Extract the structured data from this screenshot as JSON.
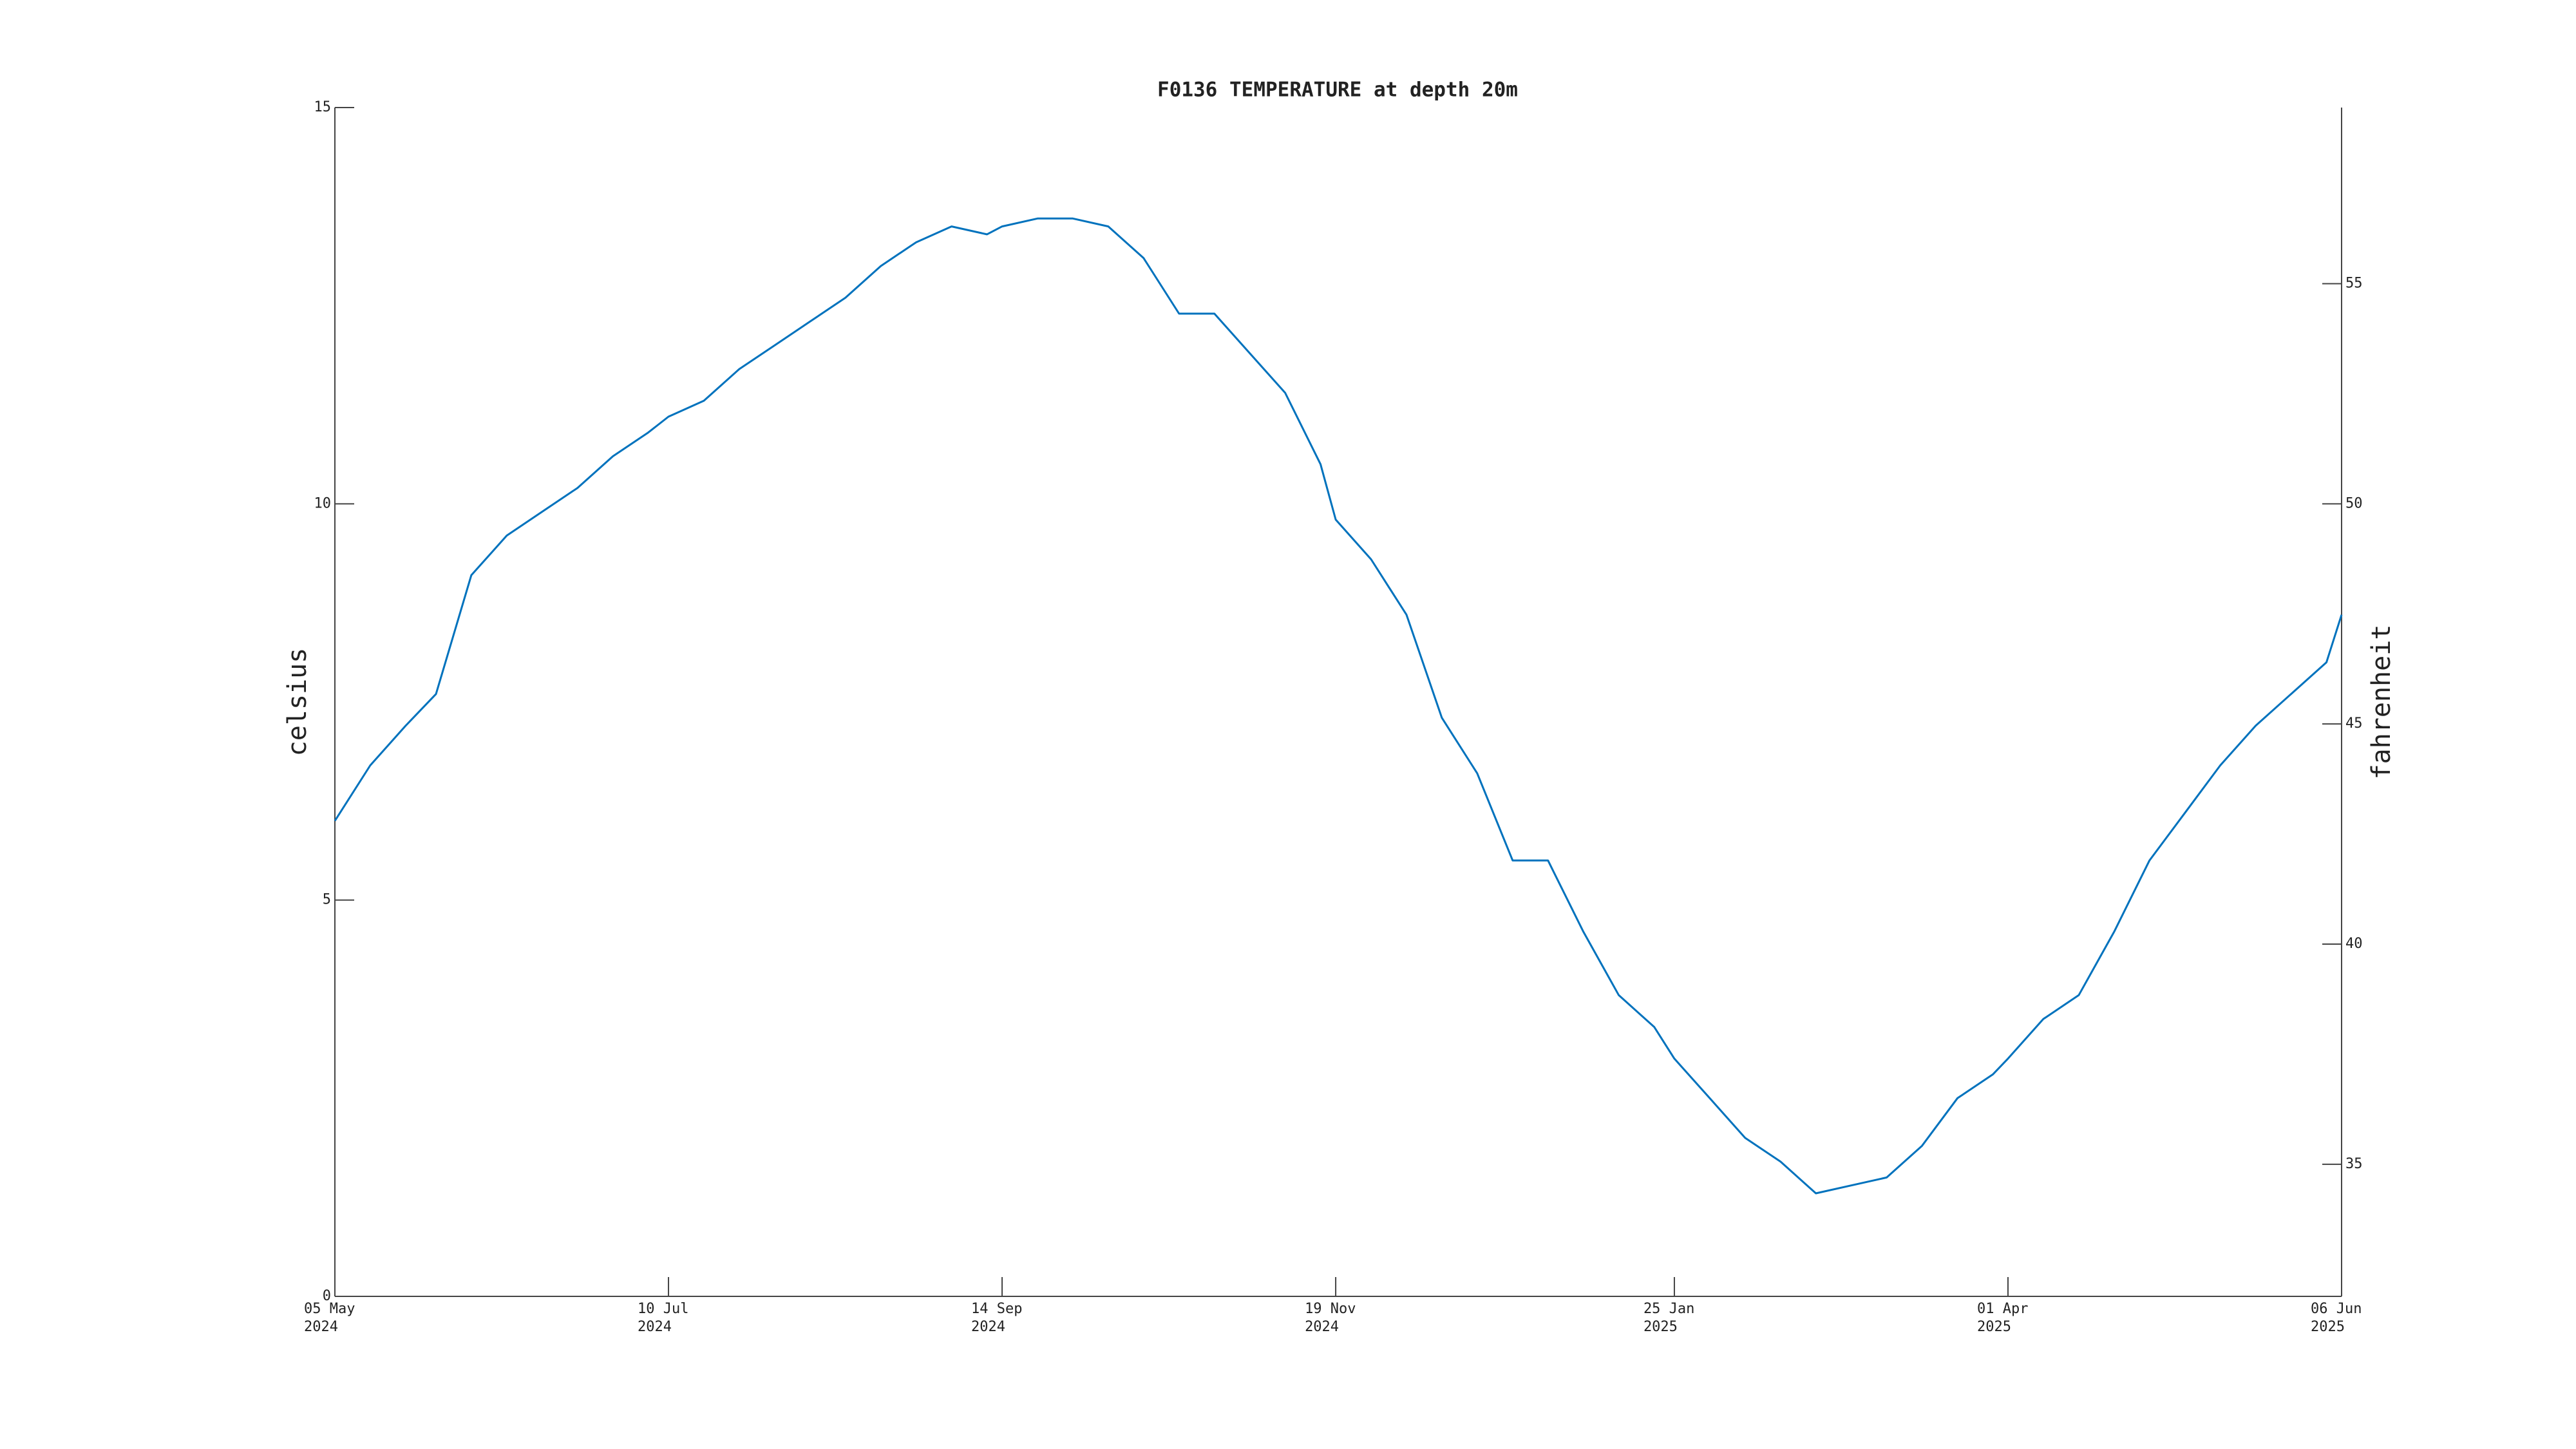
{
  "chart_data": {
    "type": "line",
    "title": "F0136 TEMPERATURE at depth 20m",
    "y_label": "celsius",
    "y2_label": "fahrenheit",
    "x": [
      "2024-05-05",
      "2024-05-12",
      "2024-05-19",
      "2024-05-25",
      "2024-06-01",
      "2024-06-08",
      "2024-06-15",
      "2024-06-22",
      "2024-06-29",
      "2024-07-06",
      "2024-07-10",
      "2024-07-17",
      "2024-07-24",
      "2024-07-31",
      "2024-08-07",
      "2024-08-14",
      "2024-08-21",
      "2024-08-28",
      "2024-09-04",
      "2024-09-11",
      "2024-09-14",
      "2024-09-21",
      "2024-09-28",
      "2024-10-05",
      "2024-10-12",
      "2024-10-19",
      "2024-10-26",
      "2024-11-02",
      "2024-11-09",
      "2024-11-16",
      "2024-11-19",
      "2024-11-26",
      "2024-12-03",
      "2024-12-10",
      "2024-12-17",
      "2024-12-24",
      "2024-12-31",
      "2025-01-07",
      "2025-01-14",
      "2025-01-21",
      "2025-01-25",
      "2025-02-01",
      "2025-02-08",
      "2025-02-15",
      "2025-02-22",
      "2025-03-01",
      "2025-03-08",
      "2025-03-15",
      "2025-03-22",
      "2025-03-29",
      "2025-04-01",
      "2025-04-08",
      "2025-04-15",
      "2025-04-22",
      "2025-04-29",
      "2025-05-06",
      "2025-05-13",
      "2025-05-20",
      "2025-05-27",
      "2025-06-03",
      "2025-06-06"
    ],
    "series": [
      {
        "name": "celsius",
        "color": "#0072bd",
        "values": [
          6.0,
          6.7,
          7.2,
          7.6,
          9.1,
          9.6,
          9.9,
          10.2,
          10.6,
          10.9,
          11.1,
          11.3,
          11.7,
          12.0,
          12.3,
          12.6,
          13.0,
          13.3,
          13.5,
          13.4,
          13.5,
          13.6,
          13.6,
          13.5,
          13.1,
          12.4,
          12.4,
          11.9,
          11.4,
          10.5,
          9.8,
          9.3,
          8.6,
          7.3,
          6.6,
          5.5,
          5.5,
          4.6,
          3.8,
          3.4,
          3.0,
          2.5,
          2.0,
          1.7,
          1.3,
          1.4,
          1.5,
          1.9,
          2.5,
          2.8,
          3.0,
          3.5,
          3.8,
          4.6,
          5.5,
          6.1,
          6.7,
          7.2,
          7.6,
          8.0,
          8.6
        ]
      }
    ],
    "xlim": [
      "2024-05-05",
      "2025-06-06"
    ],
    "xticks": [
      {
        "value": "2024-05-05",
        "label": "05 May\n2024"
      },
      {
        "value": "2024-07-10",
        "label": "10 Jul\n2024"
      },
      {
        "value": "2024-09-14",
        "label": "14 Sep\n2024"
      },
      {
        "value": "2024-11-19",
        "label": "19 Nov\n2024"
      },
      {
        "value": "2025-01-25",
        "label": "25 Jan\n2025"
      },
      {
        "value": "2025-04-01",
        "label": "01 Apr\n2025"
      },
      {
        "value": "2025-06-06",
        "label": "06 Jun\n2025"
      }
    ],
    "ylim": [
      0,
      15
    ],
    "yticks": [
      0,
      5,
      10,
      15
    ],
    "y2lim": [
      32,
      59
    ],
    "y2ticks": [
      35,
      40,
      45,
      50,
      55
    ]
  }
}
